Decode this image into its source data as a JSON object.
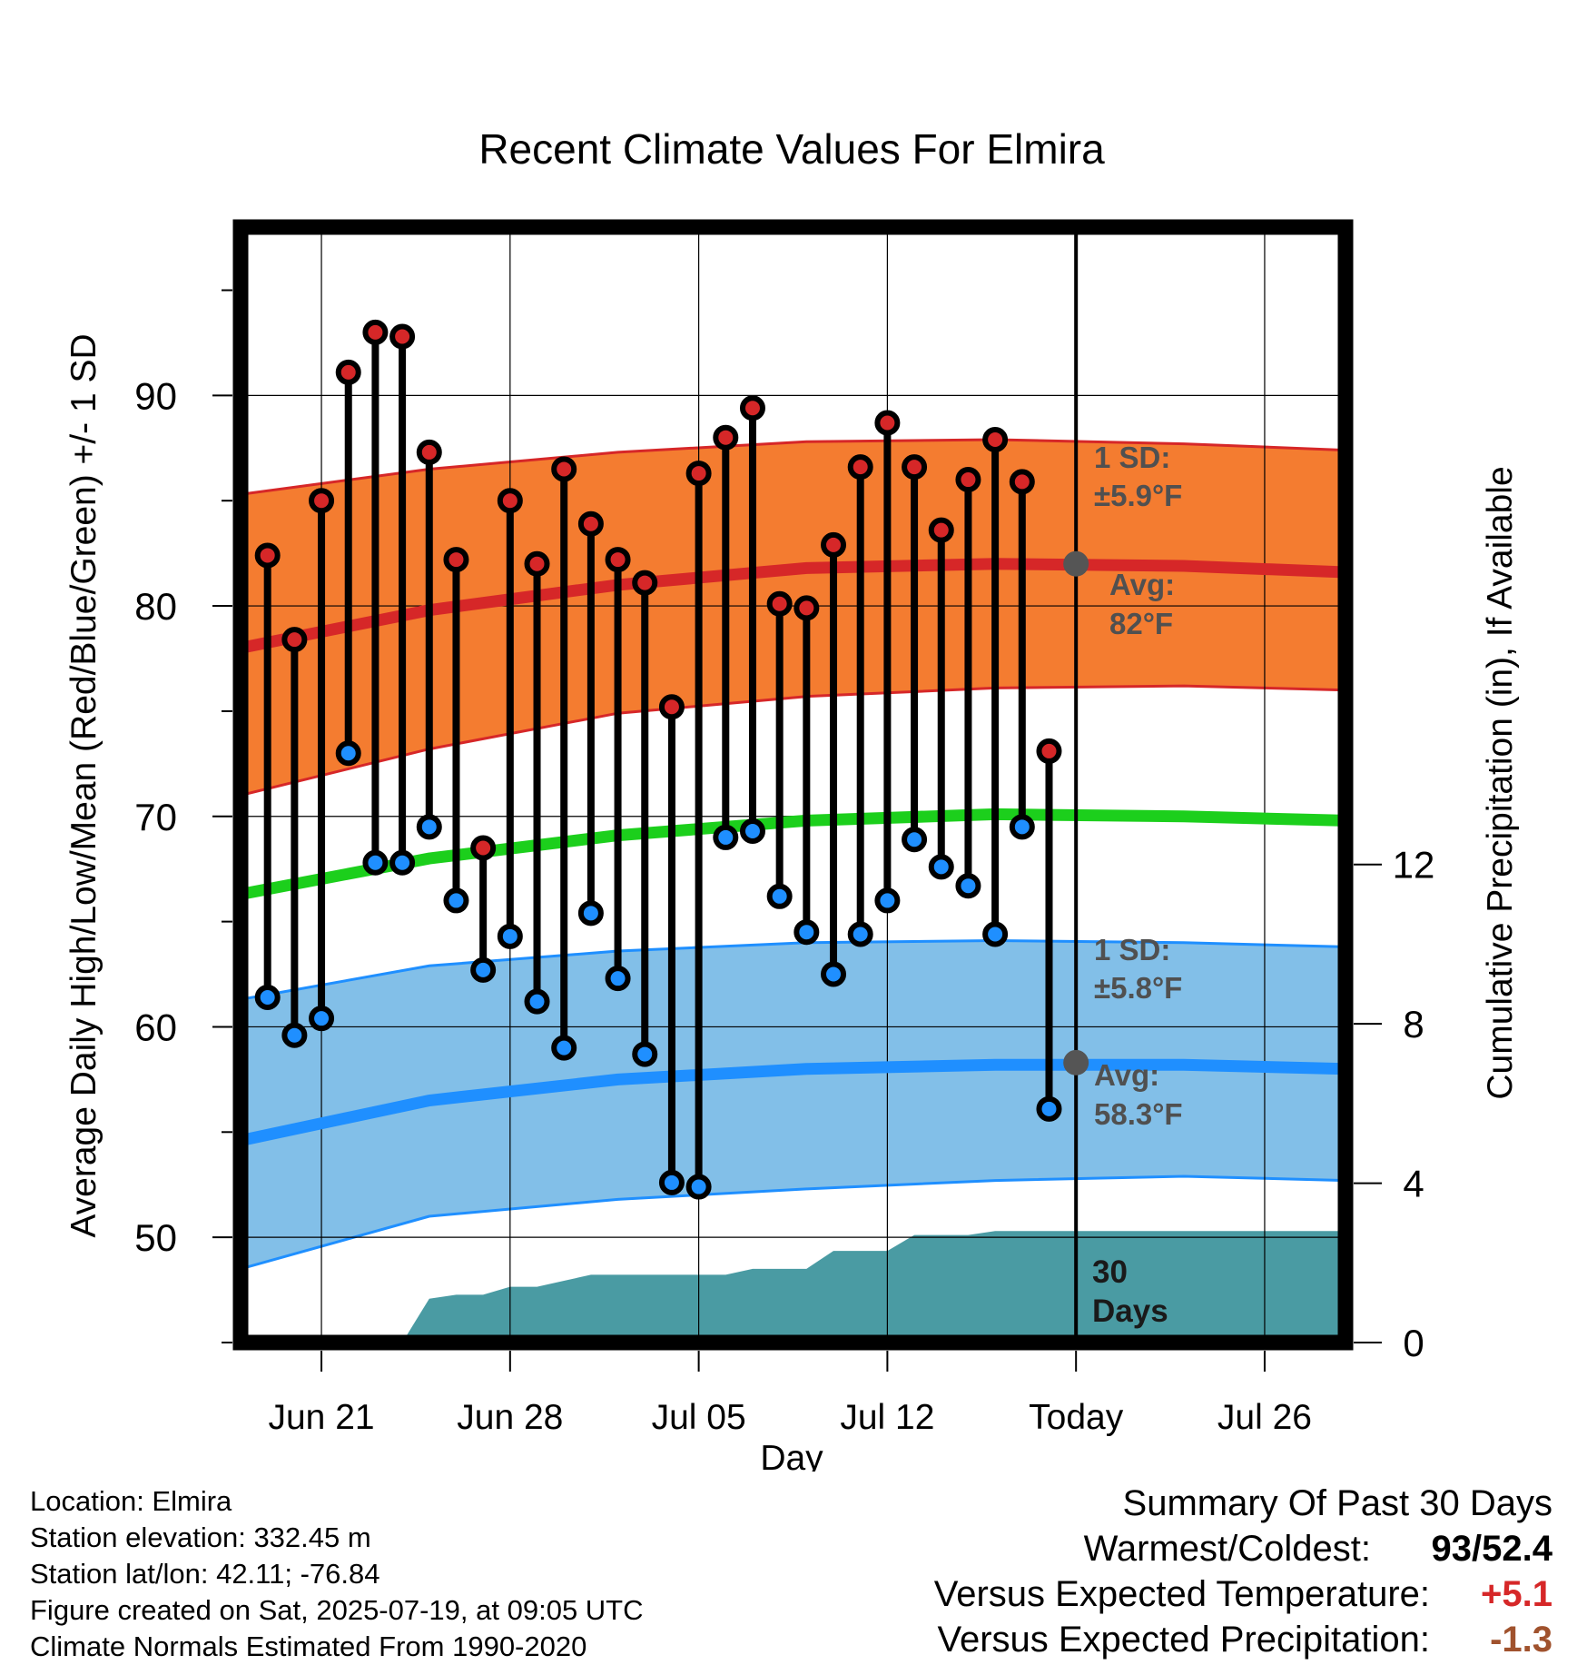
{
  "chart_data": {
    "type": "line",
    "title": "Recent Climate Values For Elmira",
    "xlabel": "Day",
    "ylabel": "Average Daily High/Low/Mean (Red/Blue/Green) +/- 1 SD",
    "y2label": "Cumulative Precipitation (in), If Available",
    "x_ticks": [
      "Jun 21",
      "Jun 28",
      "Jul 05",
      "Jul 12",
      "Today",
      "Jul 26"
    ],
    "x_range": [
      "2025-06-18",
      "2025-07-29"
    ],
    "ylim": [
      45,
      98
    ],
    "y_ticks": [
      50,
      60,
      70,
      80,
      90
    ],
    "y2lim": [
      0,
      28
    ],
    "y2_ticks": [
      0,
      4,
      8,
      12
    ],
    "grid": true,
    "today": "2025-07-19",
    "period_label": "30 Days",
    "normals": {
      "dates": [
        "2025-06-18",
        "2025-06-25",
        "2025-07-02",
        "2025-07-09",
        "2025-07-16",
        "2025-07-23",
        "2025-07-29"
      ],
      "high_avg": [
        78.0,
        79.8,
        81.0,
        81.8,
        82.0,
        81.9,
        81.6
      ],
      "high_upper": [
        85.3,
        86.5,
        87.3,
        87.8,
        87.9,
        87.7,
        87.4
      ],
      "high_lower": [
        71.0,
        73.2,
        74.9,
        75.7,
        76.1,
        76.2,
        76.0
      ],
      "mean_avg": [
        66.3,
        68.0,
        69.1,
        69.8,
        70.1,
        70.0,
        69.8
      ],
      "low_avg": [
        54.6,
        56.5,
        57.5,
        58.0,
        58.2,
        58.2,
        58.0
      ],
      "low_upper": [
        61.3,
        62.9,
        63.6,
        64.0,
        64.1,
        64.0,
        63.8
      ],
      "low_lower": [
        48.5,
        51.0,
        51.8,
        52.3,
        52.7,
        52.9,
        52.7
      ]
    },
    "high_sd_label": "1 SD:",
    "high_sd_value": "±5.9°F",
    "high_avg_label": "Avg:",
    "high_avg_value": "82°F",
    "low_sd_label": "1 SD:",
    "low_sd_value": "±5.8°F",
    "low_avg_label": "Avg:",
    "low_avg_value": "58.3°F",
    "series": [
      {
        "name": "High",
        "color": "#d62728",
        "values": [
          82.4,
          78.4,
          85.0,
          91.1,
          93.0,
          92.8,
          87.3,
          82.2,
          68.5,
          85.0,
          82.0,
          86.5,
          83.9,
          82.2,
          81.1,
          75.2,
          86.3,
          88.0,
          89.4,
          80.1,
          79.9,
          82.9,
          86.6,
          88.7,
          86.6,
          83.6,
          86.0,
          87.9,
          85.9,
          73.1
        ]
      },
      {
        "name": "Low",
        "color": "#1f8fff",
        "values": [
          61.4,
          59.6,
          60.4,
          73.0,
          67.8,
          67.8,
          69.5,
          66.0,
          62.7,
          64.3,
          61.2,
          59.0,
          65.4,
          62.3,
          58.7,
          52.6,
          52.4,
          69.0,
          69.3,
          66.2,
          64.5,
          62.5,
          64.4,
          66.0,
          68.9,
          67.6,
          66.7,
          64.4,
          69.5,
          56.1
        ]
      }
    ],
    "obs_dates": [
      "2025-06-19",
      "2025-06-20",
      "2025-06-21",
      "2025-06-22",
      "2025-06-23",
      "2025-06-24",
      "2025-06-25",
      "2025-06-26",
      "2025-06-27",
      "2025-06-28",
      "2025-06-29",
      "2025-06-30",
      "2025-07-01",
      "2025-07-02",
      "2025-07-03",
      "2025-07-04",
      "2025-07-05",
      "2025-07-06",
      "2025-07-07",
      "2025-07-08",
      "2025-07-09",
      "2025-07-10",
      "2025-07-11",
      "2025-07-12",
      "2025-07-13",
      "2025-07-14",
      "2025-07-15",
      "2025-07-16",
      "2025-07-17",
      "2025-07-18"
    ],
    "precip": {
      "color": "#4a9ba3",
      "dates": [
        "2025-06-24",
        "2025-06-25",
        "2025-06-26",
        "2025-06-27",
        "2025-06-28",
        "2025-06-29",
        "2025-06-30",
        "2025-07-01",
        "2025-07-02",
        "2025-07-03",
        "2025-07-04",
        "2025-07-05",
        "2025-07-06",
        "2025-07-07",
        "2025-07-08",
        "2025-07-09",
        "2025-07-10",
        "2025-07-11",
        "2025-07-12",
        "2025-07-13",
        "2025-07-14",
        "2025-07-15",
        "2025-07-16",
        "2025-07-17",
        "2025-07-18",
        "2025-07-29"
      ],
      "values": [
        0.0,
        1.1,
        1.2,
        1.2,
        1.4,
        1.4,
        1.55,
        1.7,
        1.7,
        1.7,
        1.7,
        1.7,
        1.7,
        1.85,
        1.85,
        1.85,
        2.3,
        2.3,
        2.3,
        2.7,
        2.7,
        2.7,
        2.8,
        2.8,
        2.8,
        2.8
      ]
    }
  },
  "footer": {
    "location": "Location: Elmira",
    "elevation": "Station elevation: 332.45 m",
    "latlon": "Station lat/lon: 42.11; -76.84",
    "created": "Figure created on Sat, 2025-07-19, at 09:05 UTC",
    "normals": "Climate Normals Estimated From 1990-2020"
  },
  "summary": {
    "title": "Summary Of Past 30 Days",
    "warm_cold_label": "Warmest/Coldest:",
    "warmest": "93",
    "coldest": "52.4",
    "temp_label": "Versus Expected Temperature:",
    "temp_value": "+5.1",
    "temp_color": "#d62728",
    "precip_label": "Versus Expected Precipitation:",
    "precip_value": "-1.3",
    "precip_color": "#a0522d"
  }
}
